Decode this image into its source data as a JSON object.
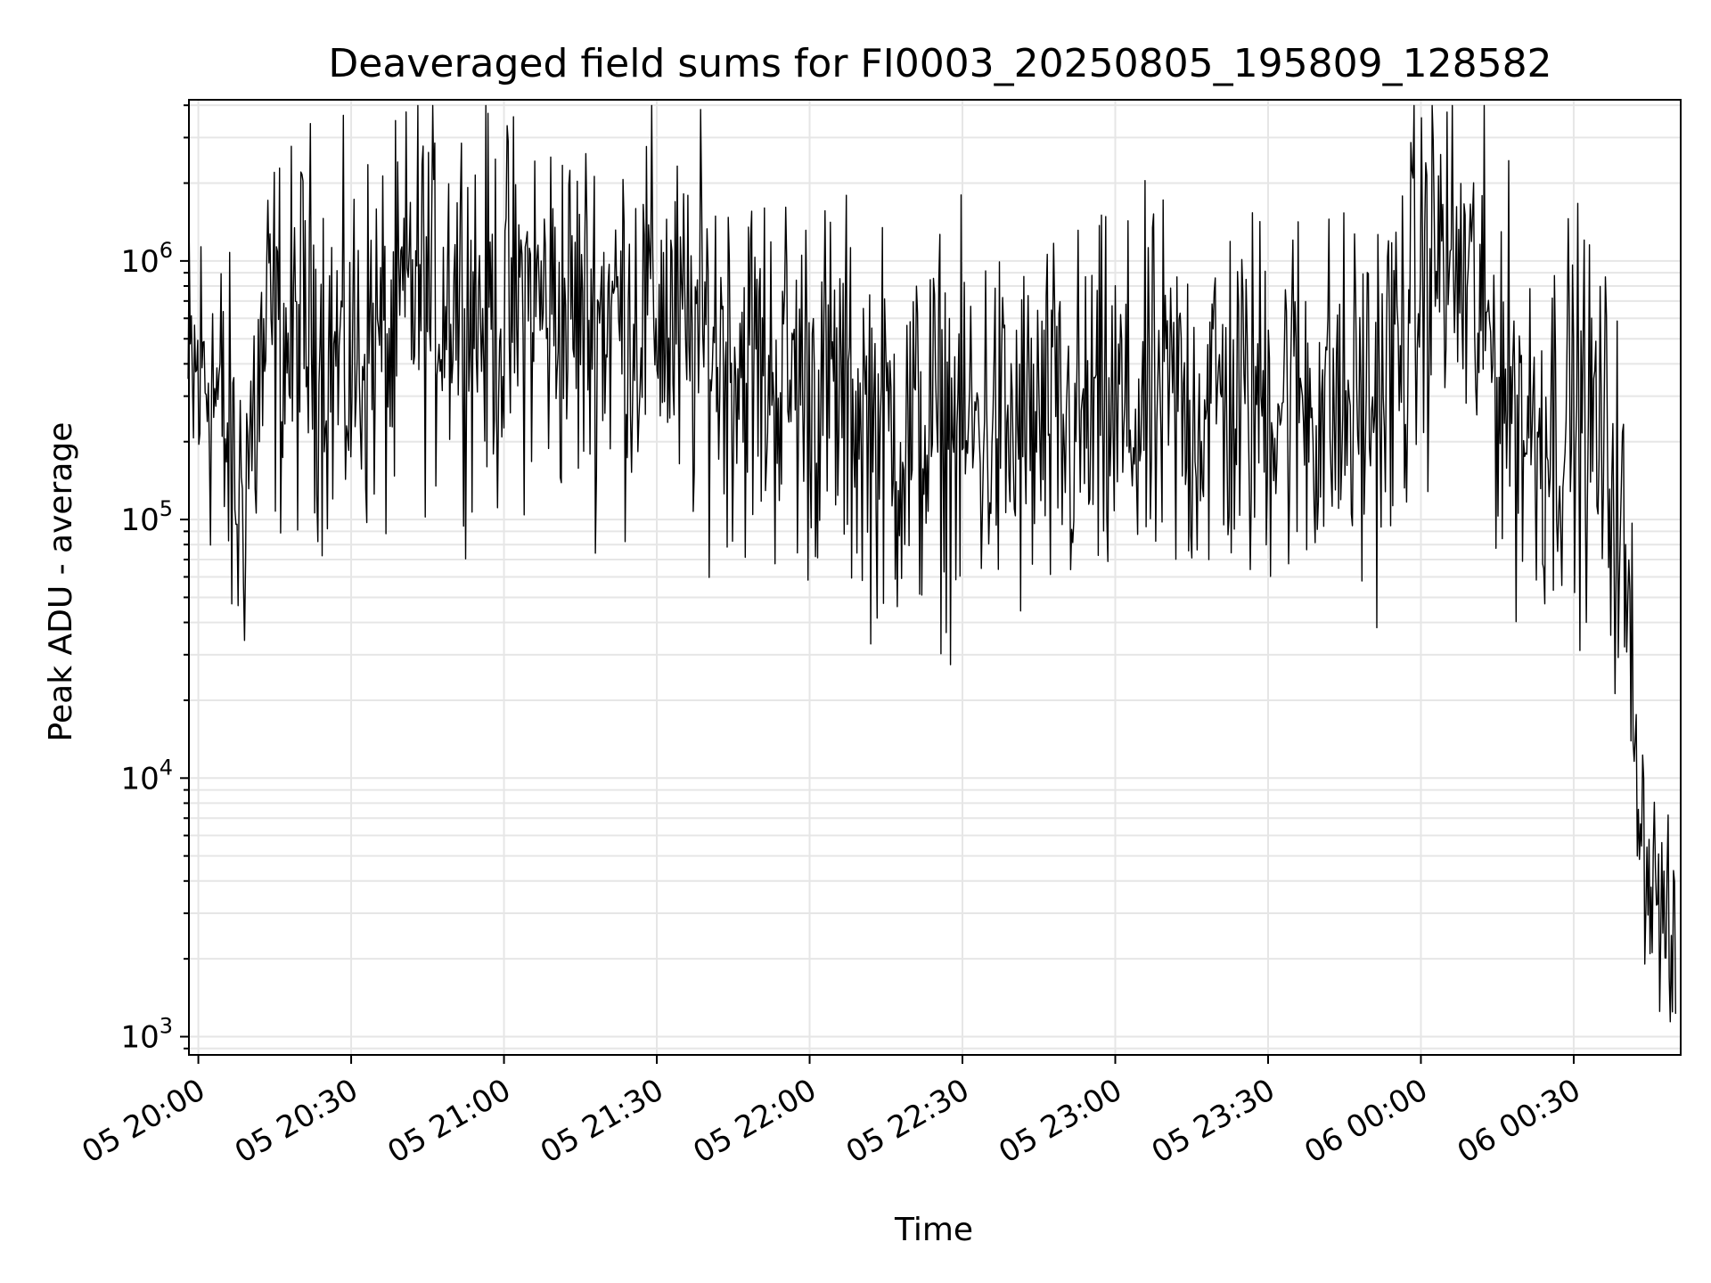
{
  "chart_data": {
    "type": "line",
    "title": "Deaveraged field sums for FI0003_20250805_195809_128582",
    "xlabel": "Time",
    "ylabel": "Peak ADU - average",
    "yscale": "log",
    "ylim": [
      850,
      4200000
    ],
    "xlim": [
      "2025-08-05 19:58:09",
      "2025-08-06 00:51:00"
    ],
    "grid": true,
    "line_color": "#000000",
    "grid_color": "#e6e6e6",
    "x_ticks": [
      {
        "t": "2025-08-05 20:00",
        "label": "05 20:00"
      },
      {
        "t": "2025-08-05 20:30",
        "label": "05 20:30"
      },
      {
        "t": "2025-08-05 21:00",
        "label": "05 21:00"
      },
      {
        "t": "2025-08-05 21:30",
        "label": "05 21:30"
      },
      {
        "t": "2025-08-05 22:00",
        "label": "05 22:00"
      },
      {
        "t": "2025-08-05 22:30",
        "label": "05 22:30"
      },
      {
        "t": "2025-08-05 23:00",
        "label": "05 23:00"
      },
      {
        "t": "2025-08-05 23:30",
        "label": "05 23:30"
      },
      {
        "t": "2025-08-06 00:00",
        "label": "06 00:00"
      },
      {
        "t": "2025-08-06 00:30",
        "label": "06 00:30"
      }
    ],
    "y_ticks": [
      {
        "value": 1000,
        "base": "10",
        "exp": "3"
      },
      {
        "value": 10000,
        "base": "10",
        "exp": "4"
      },
      {
        "value": 100000,
        "base": "10",
        "exp": "5"
      },
      {
        "value": 1000000,
        "base": "10",
        "exp": "6"
      }
    ],
    "series": [
      {
        "x": [
          "2025-08-05 19:58",
          "2025-08-05 20:02",
          "2025-08-05 20:05",
          "2025-08-05 20:08",
          "2025-08-05 20:10",
          "2025-08-05 20:14",
          "2025-08-05 20:18",
          "2025-08-05 20:22",
          "2025-08-05 20:26",
          "2025-08-05 20:30",
          "2025-08-05 20:34",
          "2025-08-05 20:38",
          "2025-08-05 20:42",
          "2025-08-05 20:46",
          "2025-08-05 20:50",
          "2025-08-05 20:55",
          "2025-08-05 21:00",
          "2025-08-05 21:05",
          "2025-08-05 21:10",
          "2025-08-05 21:15",
          "2025-08-05 21:20",
          "2025-08-05 21:25",
          "2025-08-05 21:30",
          "2025-08-05 21:35",
          "2025-08-05 21:40",
          "2025-08-05 21:45",
          "2025-08-05 21:50",
          "2025-08-05 21:55",
          "2025-08-05 22:00",
          "2025-08-05 22:05",
          "2025-08-05 22:10",
          "2025-08-05 22:15",
          "2025-08-05 22:20",
          "2025-08-05 22:25",
          "2025-08-05 22:30",
          "2025-08-05 22:35",
          "2025-08-05 22:40",
          "2025-08-05 22:45",
          "2025-08-05 22:50",
          "2025-08-05 22:55",
          "2025-08-05 23:00",
          "2025-08-05 23:05",
          "2025-08-05 23:10",
          "2025-08-05 23:15",
          "2025-08-05 23:20",
          "2025-08-05 23:25",
          "2025-08-05 23:30",
          "2025-08-05 23:35",
          "2025-08-05 23:40",
          "2025-08-05 23:45",
          "2025-08-05 23:50",
          "2025-08-05 23:55",
          "2025-08-06 00:00",
          "2025-08-06 00:03",
          "2025-08-06 00:06",
          "2025-08-06 00:10",
          "2025-08-06 00:15",
          "2025-08-06 00:20",
          "2025-08-06 00:25",
          "2025-08-06 00:30",
          "2025-08-06 00:35",
          "2025-08-06 00:38",
          "2025-08-06 00:40",
          "2025-08-06 00:42",
          "2025-08-06 00:44",
          "2025-08-06 00:46",
          "2025-08-06 00:48",
          "2025-08-06 00:50"
        ],
        "y": [
          300000,
          400000,
          220000,
          110000,
          190000,
          550000,
          450000,
          600000,
          420000,
          380000,
          520000,
          420000,
          850000,
          700000,
          850000,
          650000,
          600000,
          720000,
          650000,
          600000,
          650000,
          600000,
          700000,
          460000,
          520000,
          440000,
          380000,
          360000,
          340000,
          300000,
          260000,
          220000,
          200000,
          230000,
          210000,
          230000,
          200000,
          220000,
          210000,
          230000,
          240000,
          250000,
          280000,
          260000,
          300000,
          270000,
          310000,
          320000,
          280000,
          260000,
          280000,
          400000,
          800000,
          1100000,
          1000000,
          700000,
          420000,
          240000,
          230000,
          280000,
          200000,
          140000,
          60000,
          15000,
          5000,
          3800,
          2600,
          1700
        ],
        "spread": 0.72,
        "samples": 1400
      }
    ]
  }
}
